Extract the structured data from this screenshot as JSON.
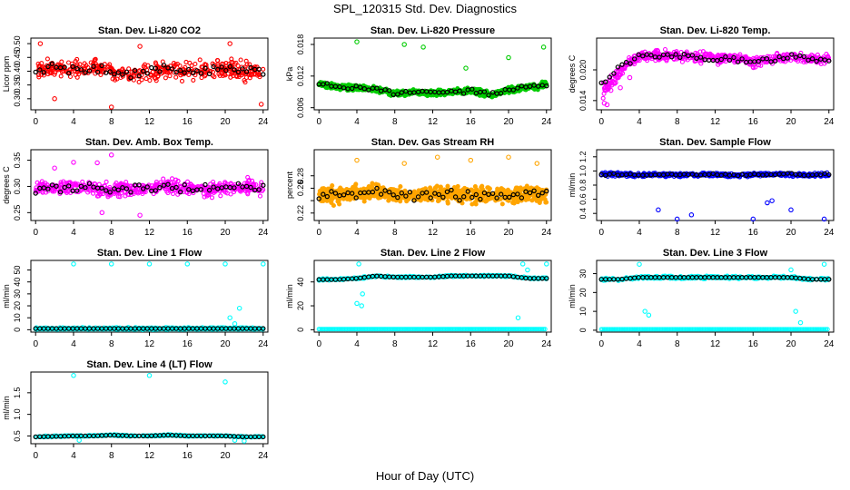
{
  "header": {
    "title": "SPL_120315  Std. Dev. Diagnostics"
  },
  "footer": {
    "xlabel": "Hour of Day (UTC)"
  },
  "colors": {
    "red": "#ff0000",
    "green": "#00cc00",
    "magenta": "#ff00ff",
    "orange": "#ffa500",
    "blue": "#0000ff",
    "cyan": "#00ffff",
    "black": "#000000"
  },
  "chart_data": [
    {
      "type": "scatter",
      "title": "Stan. Dev. Li-820 CO2",
      "ylabel": "Licor ppm",
      "color": "red",
      "xlim": [
        -0.5,
        24.5
      ],
      "ylim": [
        0.26,
        0.52
      ],
      "xticks": [
        0,
        4,
        8,
        12,
        16,
        20,
        24
      ],
      "yticks": [
        0.3,
        0.35,
        0.4,
        0.45,
        0.5
      ],
      "yticklabels": [
        "0.30",
        "0.35",
        "0.40",
        "0.45",
        "0.50"
      ],
      "ref_x": [
        0,
        2,
        4,
        6,
        8,
        10,
        12,
        14,
        16,
        18,
        20,
        22,
        24
      ],
      "ref_y": [
        0.4,
        0.41,
        0.4,
        0.41,
        0.4,
        0.39,
        0.4,
        0.41,
        0.4,
        0.4,
        0.41,
        0.4,
        0.4
      ]
    },
    {
      "type": "scatter",
      "title": "Stan. Dev. Li-820 Pressure",
      "ylabel": "kPa",
      "color": "green",
      "xlim": [
        -0.5,
        24.5
      ],
      "ylim": [
        0.0056,
        0.0192
      ],
      "xticks": [
        0,
        4,
        8,
        12,
        16,
        20,
        24
      ],
      "yticks": [
        0.006,
        0.012,
        0.018
      ],
      "yticklabels": [
        "0.006",
        "0.012",
        "0.018"
      ],
      "ref_x": [
        0,
        2,
        4,
        6,
        8,
        10,
        12,
        14,
        16,
        18,
        20,
        22,
        24
      ],
      "ref_y": [
        0.0105,
        0.01,
        0.0098,
        0.0095,
        0.0087,
        0.0089,
        0.0088,
        0.009,
        0.0092,
        0.0085,
        0.0093,
        0.01,
        0.0103
      ]
    },
    {
      "type": "scatter",
      "title": "Stan. Dev. Li-820 Temp.",
      "ylabel": "degrees C",
      "color": "magenta",
      "xlim": [
        -0.5,
        24.5
      ],
      "ylim": [
        0.0122,
        0.0262
      ],
      "xticks": [
        0,
        4,
        8,
        12,
        16,
        20,
        24
      ],
      "yticks": [
        0.014,
        0.02
      ],
      "yticklabels": [
        "0.014",
        "0.020"
      ],
      "ref_x": [
        0,
        1,
        2,
        3,
        4,
        6,
        8,
        10,
        12,
        14,
        16,
        18,
        20,
        22,
        24
      ],
      "ref_y": [
        0.0175,
        0.019,
        0.0205,
        0.0215,
        0.0225,
        0.023,
        0.0228,
        0.0225,
        0.0222,
        0.0224,
        0.0216,
        0.022,
        0.0227,
        0.0222,
        0.022
      ]
    },
    {
      "type": "scatter",
      "title": "Stan. Dev. Amb. Box Temp.",
      "ylabel": "degrees C",
      "color": "magenta",
      "xlim": [
        -0.5,
        24.5
      ],
      "ylim": [
        0.235,
        0.37
      ],
      "xticks": [
        0,
        4,
        8,
        12,
        16,
        20,
        24
      ],
      "yticks": [
        0.25,
        0.3,
        0.35
      ],
      "yticklabels": [
        "0.25",
        "0.30",
        "0.35"
      ],
      "ref_x": [
        0,
        2,
        4,
        6,
        8,
        10,
        12,
        14,
        16,
        18,
        20,
        22,
        24
      ],
      "ref_y": [
        0.295,
        0.298,
        0.3,
        0.296,
        0.292,
        0.295,
        0.298,
        0.3,
        0.296,
        0.294,
        0.298,
        0.3,
        0.297
      ]
    },
    {
      "type": "scatter",
      "title": "Stan. Dev. Gas Stream RH",
      "ylabel": "percent",
      "color": "orange",
      "xlim": [
        -0.5,
        24.5
      ],
      "ylim": [
        0.208,
        0.322
      ],
      "xticks": [
        0,
        4,
        8,
        12,
        16,
        20,
        24
      ],
      "yticks": [
        0.22,
        0.24,
        0.26,
        0.28
      ],
      "yticklabels": [
        "0.22",
        "",
        "0.26",
        "0.28"
      ],
      "ref_x": [
        0,
        2,
        4,
        6,
        8,
        10,
        12,
        14,
        16,
        18,
        20,
        22,
        24
      ],
      "ref_y": [
        0.25,
        0.248,
        0.252,
        0.255,
        0.25,
        0.248,
        0.252,
        0.25,
        0.248,
        0.25,
        0.248,
        0.252,
        0.25
      ]
    },
    {
      "type": "scatter",
      "title": "Stan. Dev. Sample Flow",
      "ylabel": "ml/min",
      "color": "blue",
      "xlim": [
        -0.5,
        24.5
      ],
      "ylim": [
        0.3,
        1.3
      ],
      "xticks": [
        0,
        4,
        8,
        12,
        16,
        20,
        24
      ],
      "yticks": [
        0.4,
        0.6,
        0.8,
        1.0,
        1.2
      ],
      "yticklabels": [
        "0.4",
        "0.6",
        "0.8",
        "1.0",
        "1.2"
      ],
      "ref_x": [
        0,
        2,
        4,
        6,
        8,
        10,
        12,
        14,
        16,
        18,
        20,
        22,
        24
      ],
      "ref_y": [
        0.95,
        0.95,
        0.94,
        0.95,
        0.94,
        0.95,
        0.95,
        0.94,
        0.95,
        0.95,
        0.95,
        0.94,
        0.95
      ]
    },
    {
      "type": "scatter",
      "title": "Stan. Dev. Line 1 Flow",
      "ylabel": "ml/min",
      "color": "cyan",
      "xlim": [
        -0.5,
        24.5
      ],
      "ylim": [
        -2,
        58
      ],
      "xticks": [
        0,
        4,
        8,
        12,
        16,
        20,
        24
      ],
      "yticks": [
        0,
        10,
        20,
        30,
        40,
        50
      ],
      "yticklabels": [
        "0",
        "10",
        "20",
        "30",
        "40",
        "50"
      ],
      "ref_x": [
        0,
        4,
        8,
        12,
        16,
        20,
        24
      ],
      "ref_y": [
        1,
        1,
        1,
        1,
        1,
        1,
        1
      ]
    },
    {
      "type": "scatter",
      "title": "Stan. Dev. Line 2 Flow",
      "ylabel": "ml/min",
      "color": "cyan",
      "xlim": [
        -0.5,
        24.5
      ],
      "ylim": [
        -2,
        58
      ],
      "xticks": [
        0,
        4,
        8,
        12,
        16,
        20,
        24
      ],
      "yticks": [
        0,
        20,
        40
      ],
      "yticklabels": [
        "0",
        "20",
        "40"
      ],
      "ref_x": [
        0,
        2,
        4,
        6,
        8,
        10,
        12,
        14,
        16,
        18,
        20,
        22,
        24
      ],
      "ref_y": [
        42,
        42,
        43,
        45,
        44,
        44,
        44,
        45,
        45,
        45,
        45,
        43,
        43
      ]
    },
    {
      "type": "scatter",
      "title": "Stan. Dev. Line 3 Flow",
      "ylabel": "ml/min",
      "color": "cyan",
      "xlim": [
        -0.5,
        24.5
      ],
      "ylim": [
        -1,
        37
      ],
      "xticks": [
        0,
        4,
        8,
        12,
        16,
        20,
        24
      ],
      "yticks": [
        0,
        10,
        20,
        30
      ],
      "yticklabels": [
        "0",
        "10",
        "20",
        "30"
      ],
      "ref_x": [
        0,
        2,
        4,
        6,
        8,
        10,
        12,
        14,
        16,
        18,
        20,
        22,
        24
      ],
      "ref_y": [
        27,
        27,
        28,
        28,
        28,
        28,
        28,
        28,
        28,
        28,
        28,
        27,
        27
      ]
    },
    {
      "type": "scatter",
      "title": "Stan. Dev. Line 4 (LT) Flow",
      "ylabel": "ml/min",
      "color": "cyan",
      "xlim": [
        -0.5,
        24.5
      ],
      "ylim": [
        0.32,
        1.98
      ],
      "xticks": [
        0,
        4,
        8,
        12,
        16,
        20,
        24
      ],
      "yticks": [
        0.5,
        1.0,
        1.5
      ],
      "yticklabels": [
        "0.5",
        "1.0",
        "1.5"
      ],
      "ref_x": [
        0,
        2,
        4,
        6,
        8,
        10,
        12,
        14,
        16,
        18,
        20,
        22,
        24
      ],
      "ref_y": [
        0.48,
        0.49,
        0.5,
        0.5,
        0.52,
        0.5,
        0.5,
        0.52,
        0.5,
        0.5,
        0.5,
        0.48,
        0.48
      ]
    }
  ]
}
